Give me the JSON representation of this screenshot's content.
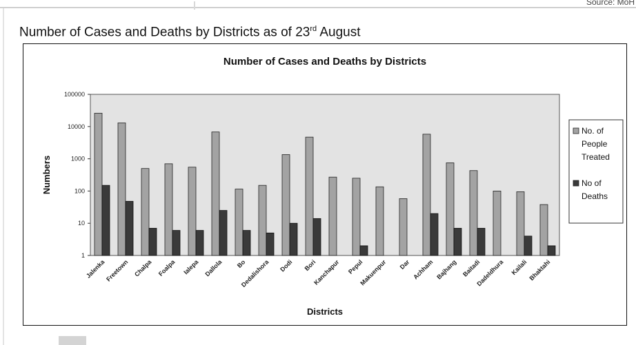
{
  "page": {
    "heading_main": "Number of Cases and Deaths by Districts as of 23",
    "heading_sup": "rd",
    "heading_tail": " August",
    "source_note": "Source: MoH"
  },
  "colors": {
    "treated": "#a3a3a3",
    "deaths": "#3a3a3a",
    "plot_bg": "#e3e3e3",
    "frame": "#111111"
  },
  "chart_data": {
    "type": "bar",
    "title": "Number of Cases and Deaths by Districts",
    "xlabel": "Districts",
    "ylabel": "Numbers",
    "yscale": "log",
    "ylim": [
      1,
      100000
    ],
    "yticks": [
      "1",
      "10",
      "100",
      "1000",
      "10000",
      "100000"
    ],
    "grid": false,
    "legend_position": "right",
    "categories": [
      "Jalenka",
      "Freetown",
      "Chalpa",
      "Foalpa",
      "Ialepa",
      "Dallola",
      "Bo",
      "Dedalishora",
      "Dodi",
      "Bori",
      "Kanchapur",
      "Pepul",
      "Makuenpur",
      "Dar",
      "Achham",
      "Bajhang",
      "Baitadi",
      "Dadeldhura",
      "Kailali",
      "Bhaktahi"
    ],
    "series": [
      {
        "name": "No. of People Treated",
        "values": [
          26000,
          13000,
          500,
          700,
          550,
          6800,
          115,
          150,
          1350,
          4700,
          270,
          250,
          135,
          58,
          5800,
          750,
          430,
          100,
          95,
          38
        ]
      },
      {
        "name": "No of Deaths",
        "values": [
          150,
          48,
          7,
          6,
          6,
          25,
          6,
          5,
          10,
          14,
          null,
          2,
          null,
          null,
          20,
          7,
          7,
          null,
          4,
          2
        ]
      }
    ]
  }
}
